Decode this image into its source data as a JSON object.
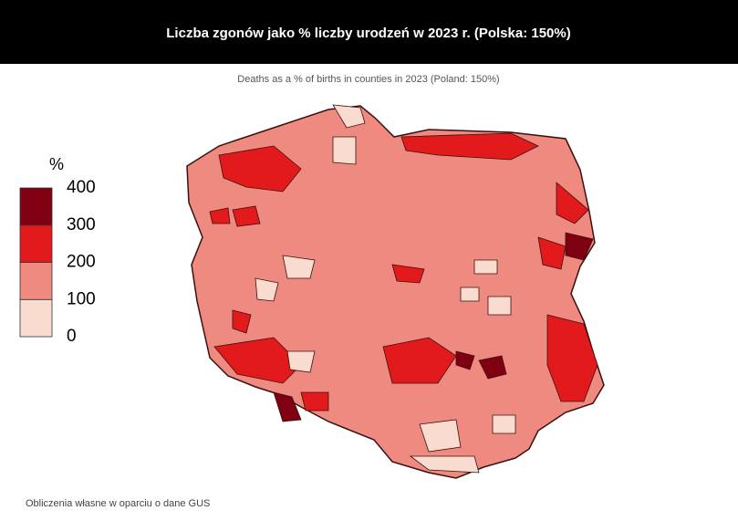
{
  "header": {
    "title": "Liczba zgonów jako % liczby urodzeń w 2023 r. (Polska: 150%)"
  },
  "subtitle": "Deaths as a % of births in counties in 2023 (Poland: 150%)",
  "legend": {
    "title": "%",
    "ticks": [
      0,
      100,
      200,
      300,
      400
    ],
    "colors": [
      "#fadbcf",
      "#ef8a80",
      "#e31a1c",
      "#7f0010"
    ]
  },
  "source": "Obliczenia własne w oparciu o dane GUS"
}
